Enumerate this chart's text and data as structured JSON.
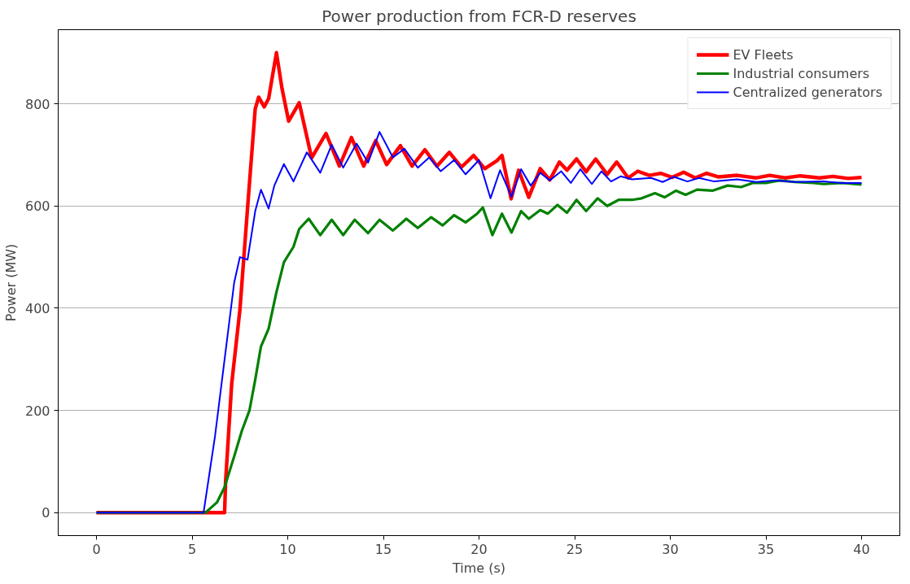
{
  "chart_data": {
    "type": "line",
    "title": "Power production from FCR-D reserves",
    "xlabel": "Time (s)",
    "ylabel": "Power (MW)",
    "xlim": [
      -2,
      42
    ],
    "ylim": [
      -45,
      945
    ],
    "xticks": [
      0,
      5,
      10,
      15,
      20,
      25,
      30,
      35,
      40
    ],
    "yticks": [
      0,
      200,
      400,
      600,
      800
    ],
    "grid": "y",
    "legend": "top right",
    "line_style": "solid",
    "series": [
      {
        "name": "EV Fleets",
        "color": "#ff0000",
        "x": [
          0,
          6.7,
          6.75,
          7.07,
          7.5,
          7.92,
          8.3,
          8.48,
          8.77,
          9.0,
          9.41,
          9.7,
          10.05,
          10.6,
          11.25,
          12.0,
          12.7,
          13.33,
          13.97,
          14.6,
          15.17,
          15.89,
          16.5,
          17.17,
          17.8,
          18.45,
          19.08,
          19.72,
          20.3,
          20.95,
          21.2,
          21.68,
          22.07,
          22.6,
          23.2,
          23.7,
          24.2,
          24.6,
          25.1,
          25.6,
          26.1,
          26.7,
          27.2,
          27.8,
          28.3,
          28.9,
          29.5,
          30.1,
          30.7,
          31.3,
          31.9,
          32.5,
          33.5,
          34.5,
          35.2,
          36,
          36.8,
          37.8,
          38.5,
          39.3,
          40
        ],
        "values": [
          0,
          0,
          60,
          252,
          397,
          606,
          790,
          813,
          794,
          810,
          900,
          830,
          766,
          802,
          694,
          742,
          678,
          734,
          678,
          728,
          681,
          718,
          678,
          710,
          678,
          705,
          676,
          699,
          673,
          689,
          699,
          614,
          670,
          617,
          673,
          651,
          686,
          670,
          692,
          667,
          692,
          662,
          686,
          655,
          668,
          660,
          664,
          656,
          666,
          655,
          664,
          657,
          660,
          655,
          660,
          655,
          659,
          655,
          658,
          654,
          656
        ]
      },
      {
        "name": "Industrial consumers",
        "color": "#008000",
        "x": [
          0,
          5.7,
          6.3,
          6.7,
          7.2,
          7.6,
          8.0,
          8.3,
          8.6,
          9.0,
          9.4,
          9.8,
          10.3,
          10.6,
          11.1,
          11.7,
          12.3,
          12.9,
          13.5,
          14.2,
          14.8,
          15.5,
          16.2,
          16.8,
          17.5,
          18.1,
          18.7,
          19.3,
          19.9,
          20.2,
          20.7,
          21.2,
          21.7,
          22.2,
          22.6,
          23.2,
          23.6,
          24.1,
          24.6,
          25.1,
          25.6,
          26.2,
          26.7,
          27.3,
          28,
          28.5,
          29.2,
          29.7,
          30.3,
          30.8,
          31.4,
          32.2,
          33,
          33.7,
          34.3,
          35,
          35.7,
          36.5,
          37.5,
          38,
          39,
          40
        ],
        "values": [
          0,
          0,
          20,
          50,
          110,
          160,
          200,
          260,
          325,
          360,
          430,
          490,
          520,
          555,
          575,
          543,
          573,
          543,
          573,
          547,
          573,
          552,
          575,
          557,
          578,
          562,
          582,
          568,
          585,
          597,
          543,
          585,
          548,
          590,
          575,
          592,
          585,
          602,
          587,
          612,
          590,
          615,
          600,
          612,
          612,
          615,
          625,
          617,
          630,
          622,
          632,
          630,
          640,
          637,
          645,
          645,
          650,
          647,
          645,
          643,
          645,
          642
        ]
      },
      {
        "name": "Centralized generators",
        "color": "#0000ff",
        "x": [
          0,
          5.6,
          6.2,
          6.7,
          7.2,
          7.5,
          7.9,
          8.3,
          8.6,
          9.0,
          9.3,
          9.8,
          10.3,
          11.0,
          11.7,
          12.3,
          12.9,
          13.6,
          14.2,
          14.8,
          15.5,
          16.1,
          16.8,
          17.4,
          18.0,
          18.7,
          19.3,
          20.0,
          20.6,
          21.1,
          21.7,
          22.2,
          22.7,
          23.2,
          23.7,
          24.3,
          24.8,
          25.3,
          25.9,
          26.4,
          26.9,
          27.4,
          28,
          29,
          29.6,
          30.2,
          30.9,
          31.5,
          32.3,
          33.5,
          34.5,
          35.5,
          36.5,
          38,
          39,
          40
        ],
        "values": [
          0,
          0,
          150,
          300,
          450,
          500,
          495,
          590,
          632,
          595,
          640,
          682,
          648,
          705,
          665,
          720,
          675,
          722,
          685,
          745,
          695,
          712,
          675,
          695,
          668,
          690,
          662,
          690,
          615,
          670,
          618,
          672,
          640,
          665,
          650,
          668,
          645,
          672,
          643,
          668,
          648,
          658,
          652,
          655,
          647,
          657,
          648,
          655,
          648,
          652,
          647,
          650,
          647,
          648,
          645,
          645
        ]
      }
    ]
  }
}
